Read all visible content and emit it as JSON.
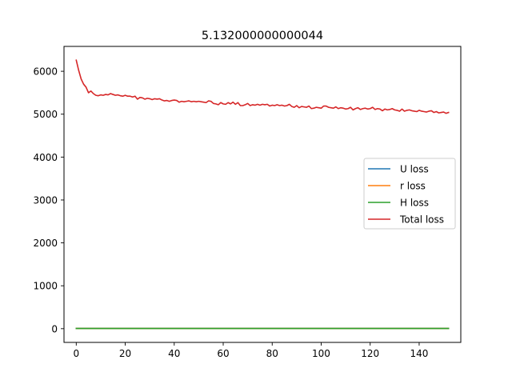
{
  "chart_data": {
    "type": "line",
    "title": "5.132000000000044",
    "xlabel": "",
    "ylabel": "",
    "xlim": [
      -5,
      157
    ],
    "ylim": [
      -320,
      6580
    ],
    "x_ticks": [
      0,
      20,
      40,
      60,
      80,
      100,
      120,
      140
    ],
    "y_ticks": [
      0,
      1000,
      2000,
      3000,
      4000,
      5000,
      6000
    ],
    "legend_position": "center-right",
    "grid": false,
    "series": [
      {
        "name": "U loss",
        "color": "#1f77b4",
        "x": [
          0,
          152
        ],
        "y": [
          5,
          5
        ]
      },
      {
        "name": "r loss",
        "color": "#ff7f0e",
        "x": [
          0,
          152
        ],
        "y": [
          5,
          5
        ]
      },
      {
        "name": "H loss",
        "color": "#2ca02c",
        "x": [
          0,
          152
        ],
        "y": [
          5,
          5
        ]
      },
      {
        "name": "Total loss",
        "color": "#d62728",
        "x": [
          0,
          1,
          2,
          3,
          4,
          5,
          6,
          7,
          8,
          9,
          10,
          11,
          12,
          13,
          14,
          15,
          16,
          17,
          18,
          19,
          20,
          21,
          22,
          23,
          24,
          25,
          26,
          27,
          28,
          29,
          30,
          31,
          32,
          33,
          34,
          35,
          36,
          37,
          38,
          39,
          40,
          41,
          42,
          43,
          44,
          45,
          46,
          47,
          48,
          49,
          50,
          51,
          52,
          53,
          54,
          55,
          56,
          57,
          58,
          59,
          60,
          61,
          62,
          63,
          64,
          65,
          66,
          67,
          68,
          69,
          70,
          71,
          72,
          73,
          74,
          75,
          76,
          77,
          78,
          79,
          80,
          81,
          82,
          83,
          84,
          85,
          86,
          87,
          88,
          89,
          90,
          91,
          92,
          93,
          94,
          95,
          96,
          97,
          98,
          99,
          100,
          101,
          102,
          103,
          104,
          105,
          106,
          107,
          108,
          109,
          110,
          111,
          112,
          113,
          114,
          115,
          116,
          117,
          118,
          119,
          120,
          121,
          122,
          123,
          124,
          125,
          126,
          127,
          128,
          129,
          130,
          131,
          132,
          133,
          134,
          135,
          136,
          137,
          138,
          139,
          140,
          141,
          142,
          143,
          144,
          145,
          146,
          147,
          148,
          149,
          150,
          151,
          152
        ],
        "y": [
          6260,
          6020,
          5820,
          5700,
          5630,
          5500,
          5540,
          5480,
          5440,
          5430,
          5450,
          5440,
          5460,
          5450,
          5480,
          5460,
          5440,
          5450,
          5430,
          5420,
          5440,
          5420,
          5420,
          5400,
          5420,
          5350,
          5390,
          5380,
          5350,
          5370,
          5360,
          5340,
          5360,
          5350,
          5360,
          5330,
          5310,
          5320,
          5300,
          5320,
          5330,
          5320,
          5280,
          5300,
          5290,
          5300,
          5310,
          5290,
          5300,
          5290,
          5300,
          5290,
          5280,
          5270,
          5310,
          5300,
          5250,
          5240,
          5220,
          5270,
          5240,
          5230,
          5270,
          5240,
          5280,
          5230,
          5270,
          5200,
          5200,
          5220,
          5250,
          5200,
          5220,
          5210,
          5230,
          5210,
          5230,
          5220,
          5230,
          5190,
          5210,
          5200,
          5220,
          5200,
          5210,
          5190,
          5200,
          5230,
          5180,
          5160,
          5200,
          5150,
          5180,
          5170,
          5160,
          5190,
          5130,
          5140,
          5160,
          5150,
          5140,
          5190,
          5190,
          5160,
          5150,
          5140,
          5170,
          5130,
          5150,
          5140,
          5120,
          5130,
          5160,
          5100,
          5130,
          5150,
          5110,
          5130,
          5140,
          5120,
          5130,
          5160,
          5110,
          5130,
          5120,
          5080,
          5120,
          5100,
          5110,
          5130,
          5100,
          5090,
          5070,
          5120,
          5070,
          5090,
          5100,
          5080,
          5070,
          5060,
          5090,
          5070,
          5060,
          5050,
          5070,
          5080,
          5040,
          5060,
          5030,
          5040,
          5050,
          5020,
          5040
        ]
      }
    ]
  }
}
